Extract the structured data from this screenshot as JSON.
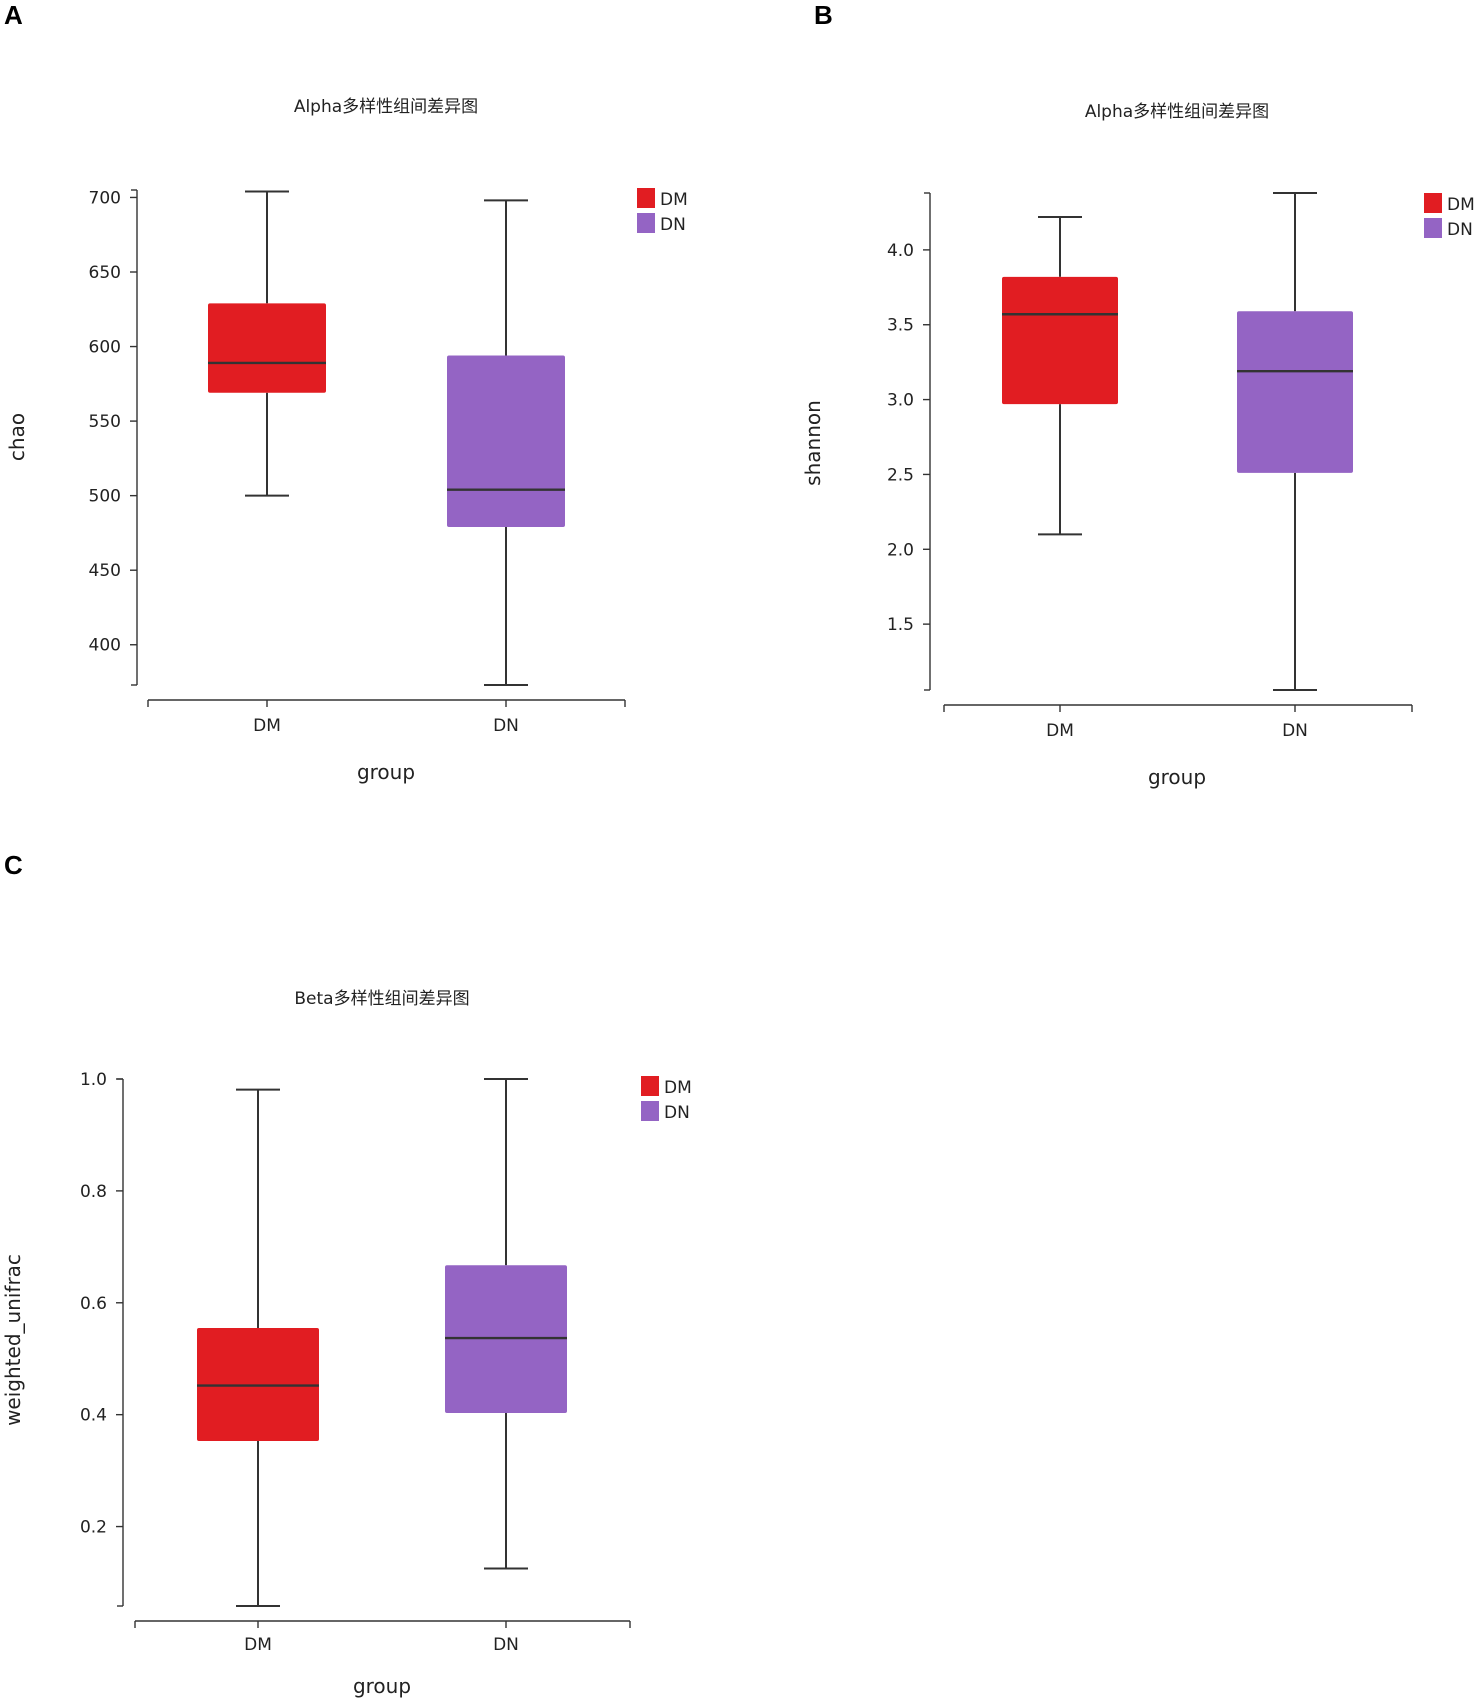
{
  "panels": [
    {
      "letter": "A"
    },
    {
      "letter": "B"
    },
    {
      "letter": "C"
    }
  ],
  "chart_data": [
    {
      "type": "boxplot",
      "title": "Alpha多样性组间差异图",
      "xlabel": "group",
      "ylabel": "chao",
      "categories": [
        "DM",
        "DN"
      ],
      "colors": [
        "#e11d22",
        "#9464c4"
      ],
      "legend": [
        "DM",
        "DN"
      ],
      "legend_position": "top-right",
      "ylim": [
        373,
        705
      ],
      "yticks": [
        400,
        450,
        500,
        550,
        600,
        650,
        700
      ],
      "ytick_labels": [
        "400",
        "450",
        "500",
        "550",
        "600",
        "650",
        "700"
      ],
      "boxes": [
        {
          "name": "DM",
          "min": 500,
          "q1": 569,
          "median": 589,
          "q3": 629,
          "max": 704
        },
        {
          "name": "DN",
          "min": 373,
          "q1": 479,
          "median": 504,
          "q3": 594,
          "max": 698
        }
      ]
    },
    {
      "type": "boxplot",
      "title": "Alpha多样性组间差异图",
      "xlabel": "group",
      "ylabel": "shannon",
      "categories": [
        "DM",
        "DN"
      ],
      "colors": [
        "#e11d22",
        "#9464c4"
      ],
      "legend": [
        "DM",
        "DN"
      ],
      "legend_position": "top-right",
      "ylim": [
        1.06,
        4.38
      ],
      "yticks": [
        1.5,
        2.0,
        2.5,
        3.0,
        3.5,
        4.0
      ],
      "ytick_labels": [
        "1.5",
        "2.0",
        "2.5",
        "3.0",
        "3.5",
        "4.0"
      ],
      "boxes": [
        {
          "name": "DM",
          "min": 2.1,
          "q1": 2.97,
          "median": 3.57,
          "q3": 3.82,
          "max": 4.22
        },
        {
          "name": "DN",
          "min": 1.06,
          "q1": 2.51,
          "median": 3.19,
          "q3": 3.59,
          "max": 4.38
        }
      ]
    },
    {
      "type": "boxplot",
      "title": "Beta多样性组间差异图",
      "xlabel": "group",
      "ylabel": "weighted_unifrac",
      "categories": [
        "DM",
        "DN"
      ],
      "colors": [
        "#e11d22",
        "#9464c4"
      ],
      "legend": [
        "DM",
        "DN"
      ],
      "legend_position": "top-right",
      "ylim": [
        0.058,
        1.0
      ],
      "yticks": [
        0.2,
        0.4,
        0.6,
        0.8,
        1.0
      ],
      "ytick_labels": [
        "0.2",
        "0.4",
        "0.6",
        "0.8",
        "1.0"
      ],
      "boxes": [
        {
          "name": "DM",
          "min": 0.058,
          "q1": 0.353,
          "median": 0.452,
          "q3": 0.555,
          "max": 0.981
        },
        {
          "name": "DN",
          "min": 0.125,
          "q1": 0.403,
          "median": 0.537,
          "q3": 0.667,
          "max": 1.0
        }
      ]
    }
  ]
}
